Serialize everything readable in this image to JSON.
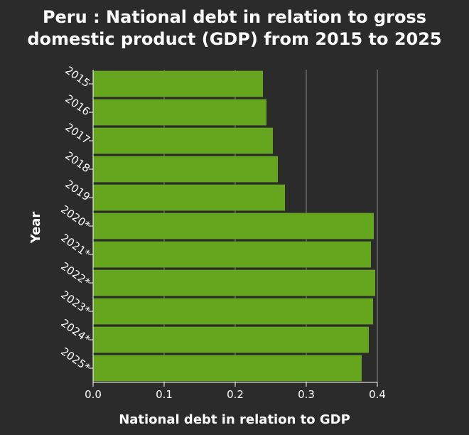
{
  "chart_data": {
    "type": "bar",
    "orientation": "horizontal",
    "title": "Peru : National debt in relation to gross domestic product (GDP) from 2015 to 2025",
    "title_lines": [
      "Peru : National debt in relation to gross",
      "domestic product (GDP) from 2015 to 2025"
    ],
    "xlabel": "National debt in relation to GDP",
    "ylabel": "Year",
    "categories": [
      "2015",
      "2016",
      "2017",
      "2018",
      "2019",
      "2020*",
      "2021*",
      "2022*",
      "2023*",
      "2024*",
      "2025*"
    ],
    "values": [
      0.239,
      0.244,
      0.253,
      0.26,
      0.27,
      0.395,
      0.391,
      0.397,
      0.394,
      0.388,
      0.378
    ],
    "xlim": [
      0,
      0.4
    ],
    "xticks": [
      "0.0",
      "0.1",
      "0.2",
      "0.3",
      "0.4"
    ],
    "xtick_values": [
      0,
      0.1,
      0.2,
      0.3,
      0.4
    ],
    "grid": true,
    "bar_color": "#66a61e",
    "background_color": "#2b2b2b",
    "plot_background_color": "#2b2b2b",
    "grid_color": "#8a8a8a"
  }
}
